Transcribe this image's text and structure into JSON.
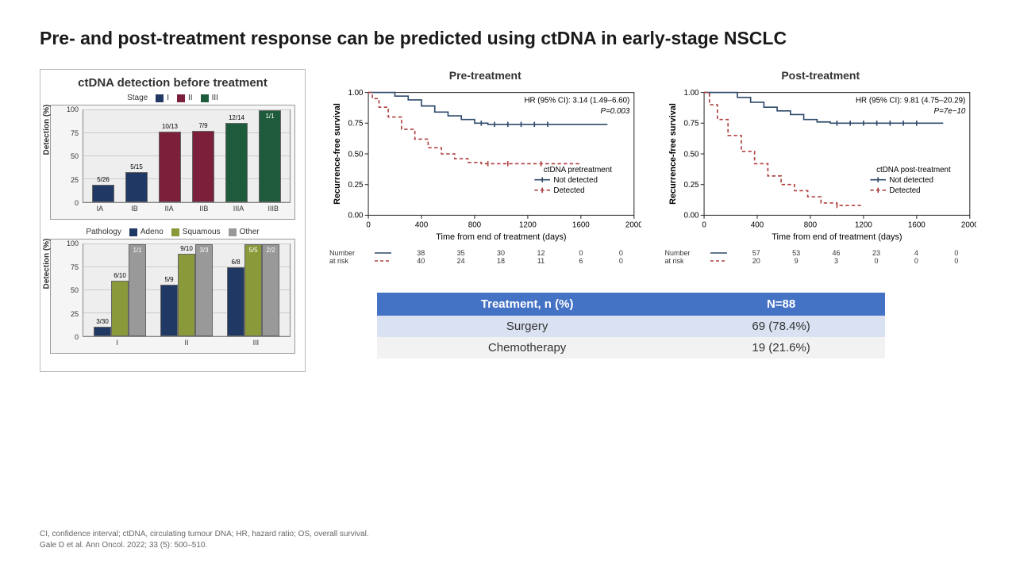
{
  "title": "Pre- and post-treatment response can be predicted using ctDNA in early-stage NSCLC",
  "left_panel": {
    "title": "ctDNA detection before treatment",
    "chart1": {
      "legend_title": "Stage",
      "legend": [
        {
          "label": "I",
          "color": "#203864"
        },
        {
          "label": "II",
          "color": "#7b1f3a"
        },
        {
          "label": "III",
          "color": "#1e5b3c"
        }
      ],
      "ylabel": "Detection (%)",
      "ylim": [
        0,
        100
      ],
      "yticks": [
        0,
        25,
        50,
        75,
        100
      ],
      "categories": [
        "IA",
        "IB",
        "IIA",
        "IIB",
        "IIIA",
        "IIIB"
      ],
      "bars": [
        {
          "value": 19,
          "label": "5/26",
          "color": "#203864"
        },
        {
          "value": 33,
          "label": "5/15",
          "color": "#203864"
        },
        {
          "value": 77,
          "label": "10/13",
          "color": "#7b1f3a"
        },
        {
          "value": 78,
          "label": "7/9",
          "color": "#7b1f3a"
        },
        {
          "value": 86,
          "label": "12/14",
          "color": "#1e5b3c"
        },
        {
          "value": 100,
          "label": "1/1",
          "color": "#1e5b3c",
          "label_inside": true
        }
      ]
    },
    "chart2": {
      "legend_title": "Pathology",
      "legend": [
        {
          "label": "Adeno",
          "color": "#203864"
        },
        {
          "label": "Squamous",
          "color": "#8a9a3a"
        },
        {
          "label": "Other",
          "color": "#999999"
        }
      ],
      "ylabel": "Detection (%)",
      "ylim": [
        0,
        100
      ],
      "yticks": [
        0,
        25,
        50,
        75,
        100
      ],
      "categories": [
        "I",
        "II",
        "III"
      ],
      "groups": [
        [
          {
            "value": 10,
            "label": "3/30",
            "color": "#203864"
          },
          {
            "value": 60,
            "label": "6/10",
            "color": "#8a9a3a"
          },
          {
            "value": 100,
            "label": "1/1",
            "color": "#999999",
            "label_inside": true
          }
        ],
        [
          {
            "value": 56,
            "label": "5/9",
            "color": "#203864"
          },
          {
            "value": 90,
            "label": "9/10",
            "color": "#8a9a3a"
          },
          {
            "value": 100,
            "label": "3/3",
            "color": "#999999",
            "label_inside": true
          }
        ],
        [
          {
            "value": 75,
            "label": "6/8",
            "color": "#203864"
          },
          {
            "value": 100,
            "label": "5/5",
            "color": "#8a9a3a",
            "label_inside": true
          },
          {
            "value": 100,
            "label": "2/2",
            "color": "#999999",
            "label_inside": true
          }
        ]
      ]
    }
  },
  "km": [
    {
      "title": "Pre-treatment",
      "ylabel": "Recurrence-free survival",
      "xlabel": "Time from end of treatment (days)",
      "hr_text": "HR (95% CI): 3.14 (1.49–6.60)",
      "p_text": "P=0.003",
      "xlim": [
        0,
        2000
      ],
      "xticks": [
        0,
        400,
        800,
        1200,
        1600,
        2000
      ],
      "ylim": [
        0,
        1
      ],
      "yticks": [
        0,
        0.25,
        0.5,
        0.75,
        1
      ],
      "legend_title": "ctDNA pretreatment",
      "series": [
        {
          "name": "Not detected",
          "color": "#2e4a6b",
          "dash": "none",
          "points": [
            [
              0,
              1
            ],
            [
              100,
              1
            ],
            [
              200,
              0.97
            ],
            [
              300,
              0.94
            ],
            [
              400,
              0.89
            ],
            [
              500,
              0.84
            ],
            [
              600,
              0.81
            ],
            [
              700,
              0.78
            ],
            [
              800,
              0.75
            ],
            [
              900,
              0.74
            ],
            [
              1000,
              0.74
            ],
            [
              1200,
              0.74
            ],
            [
              1600,
              0.74
            ],
            [
              1800,
              0.74
            ]
          ],
          "censors": [
            [
              850,
              0.75
            ],
            [
              950,
              0.74
            ],
            [
              1050,
              0.74
            ],
            [
              1150,
              0.74
            ],
            [
              1250,
              0.74
            ],
            [
              1350,
              0.74
            ]
          ]
        },
        {
          "name": "Detected",
          "color": "#b04040",
          "dash": "4,3",
          "points": [
            [
              0,
              1
            ],
            [
              30,
              0.95
            ],
            [
              80,
              0.88
            ],
            [
              150,
              0.8
            ],
            [
              250,
              0.7
            ],
            [
              350,
              0.62
            ],
            [
              450,
              0.55
            ],
            [
              550,
              0.5
            ],
            [
              650,
              0.46
            ],
            [
              750,
              0.43
            ],
            [
              850,
              0.42
            ],
            [
              1000,
              0.42
            ],
            [
              1200,
              0.42
            ],
            [
              1600,
              0.42
            ]
          ],
          "censors": [
            [
              900,
              0.42
            ],
            [
              1050,
              0.42
            ],
            [
              1300,
              0.42
            ]
          ]
        }
      ],
      "risk_label": "Number at risk",
      "risk": [
        {
          "color": "#2e4a6b",
          "dash": "none",
          "vals": [
            38,
            35,
            30,
            12,
            0,
            0
          ]
        },
        {
          "color": "#b04040",
          "dash": "4,3",
          "vals": [
            40,
            24,
            18,
            11,
            6,
            0
          ]
        }
      ]
    },
    {
      "title": "Post-treatment",
      "ylabel": "Recurrence-free survival",
      "xlabel": "Time from end of treatment (days)",
      "hr_text": "HR (95% CI): 9.81 (4.75–20.29)",
      "p_text": "P=7e−10",
      "xlim": [
        0,
        2000
      ],
      "xticks": [
        0,
        400,
        800,
        1200,
        1600,
        2000
      ],
      "ylim": [
        0,
        1
      ],
      "yticks": [
        0,
        0.25,
        0.5,
        0.75,
        1
      ],
      "legend_title": "ctDNA post-treatment",
      "series": [
        {
          "name": "Not detected",
          "color": "#2e4a6b",
          "dash": "none",
          "points": [
            [
              0,
              1
            ],
            [
              150,
              1
            ],
            [
              250,
              0.96
            ],
            [
              350,
              0.92
            ],
            [
              450,
              0.88
            ],
            [
              550,
              0.85
            ],
            [
              650,
              0.82
            ],
            [
              750,
              0.78
            ],
            [
              850,
              0.76
            ],
            [
              950,
              0.75
            ],
            [
              1100,
              0.75
            ],
            [
              1300,
              0.75
            ],
            [
              1600,
              0.75
            ],
            [
              1800,
              0.75
            ]
          ],
          "censors": [
            [
              1000,
              0.75
            ],
            [
              1100,
              0.75
            ],
            [
              1200,
              0.75
            ],
            [
              1300,
              0.75
            ],
            [
              1400,
              0.75
            ],
            [
              1500,
              0.75
            ],
            [
              1600,
              0.75
            ]
          ]
        },
        {
          "name": "Detected",
          "color": "#b04040",
          "dash": "4,3",
          "points": [
            [
              0,
              1
            ],
            [
              40,
              0.9
            ],
            [
              100,
              0.78
            ],
            [
              180,
              0.65
            ],
            [
              280,
              0.52
            ],
            [
              380,
              0.42
            ],
            [
              480,
              0.32
            ],
            [
              580,
              0.25
            ],
            [
              680,
              0.2
            ],
            [
              780,
              0.15
            ],
            [
              880,
              0.1
            ],
            [
              1000,
              0.08
            ],
            [
              1200,
              0.08
            ]
          ],
          "censors": [
            [
              1000,
              0.08
            ]
          ]
        }
      ],
      "risk_label": "Number at risk",
      "risk": [
        {
          "color": "#2e4a6b",
          "dash": "none",
          "vals": [
            57,
            53,
            46,
            23,
            4,
            0
          ]
        },
        {
          "color": "#b04040",
          "dash": "4,3",
          "vals": [
            20,
            9,
            3,
            0,
            0,
            0
          ]
        }
      ]
    }
  ],
  "table": {
    "headers": [
      "Treatment, n (%)",
      "N=88"
    ],
    "rows": [
      [
        "Surgery",
        "69 (78.4%)"
      ],
      [
        "Chemotherapy",
        "19 (21.6%)"
      ]
    ]
  },
  "footnote": {
    "line1": "CI, confidence interval; ctDNA, circulating tumour DNA; HR, hazard ratio; OS, overall survival.",
    "line2": "Gale D et al. Ann Oncol. 2022; 33 (5): 500–510."
  }
}
